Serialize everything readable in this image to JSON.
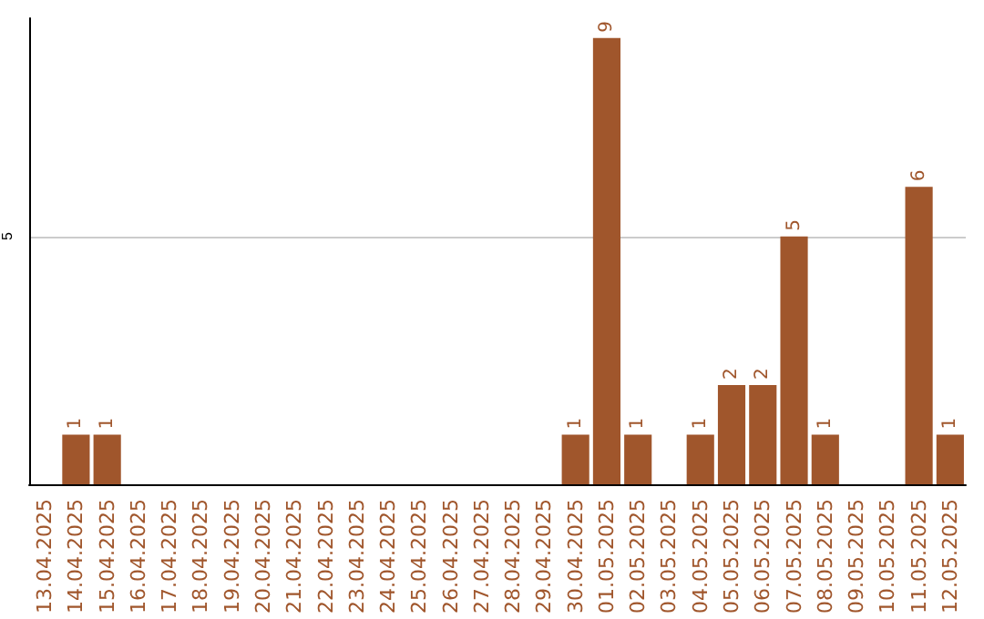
{
  "chart_data": {
    "type": "bar",
    "categories": [
      "13.04.2025",
      "14.04.2025",
      "15.04.2025",
      "16.04.2025",
      "17.04.2025",
      "18.04.2025",
      "19.04.2025",
      "20.04.2025",
      "21.04.2025",
      "22.04.2025",
      "23.04.2025",
      "24.04.2025",
      "25.04.2025",
      "26.04.2025",
      "27.04.2025",
      "28.04.2025",
      "29.04.2025",
      "30.04.2025",
      "01.05.2025",
      "02.05.2025",
      "03.05.2025",
      "04.05.2025",
      "05.05.2025",
      "06.05.2025",
      "07.05.2025",
      "08.05.2025",
      "09.05.2025",
      "10.05.2025",
      "11.05.2025",
      "12.05.2025"
    ],
    "values": [
      0,
      1,
      1,
      0,
      0,
      0,
      0,
      0,
      0,
      0,
      0,
      0,
      0,
      0,
      0,
      0,
      0,
      1,
      9,
      1,
      0,
      1,
      2,
      2,
      5,
      1,
      0,
      0,
      6,
      1
    ],
    "value_labels": [
      null,
      "1",
      "1",
      null,
      null,
      null,
      null,
      null,
      null,
      null,
      null,
      null,
      null,
      null,
      null,
      null,
      null,
      "1",
      "9",
      "1",
      null,
      "1",
      "2",
      "2",
      "5",
      "1",
      null,
      null,
      "6",
      "1"
    ],
    "color": "#a0562c",
    "ylim": [
      0,
      9.4
    ],
    "yticks": [
      5
    ],
    "grid": "y"
  }
}
